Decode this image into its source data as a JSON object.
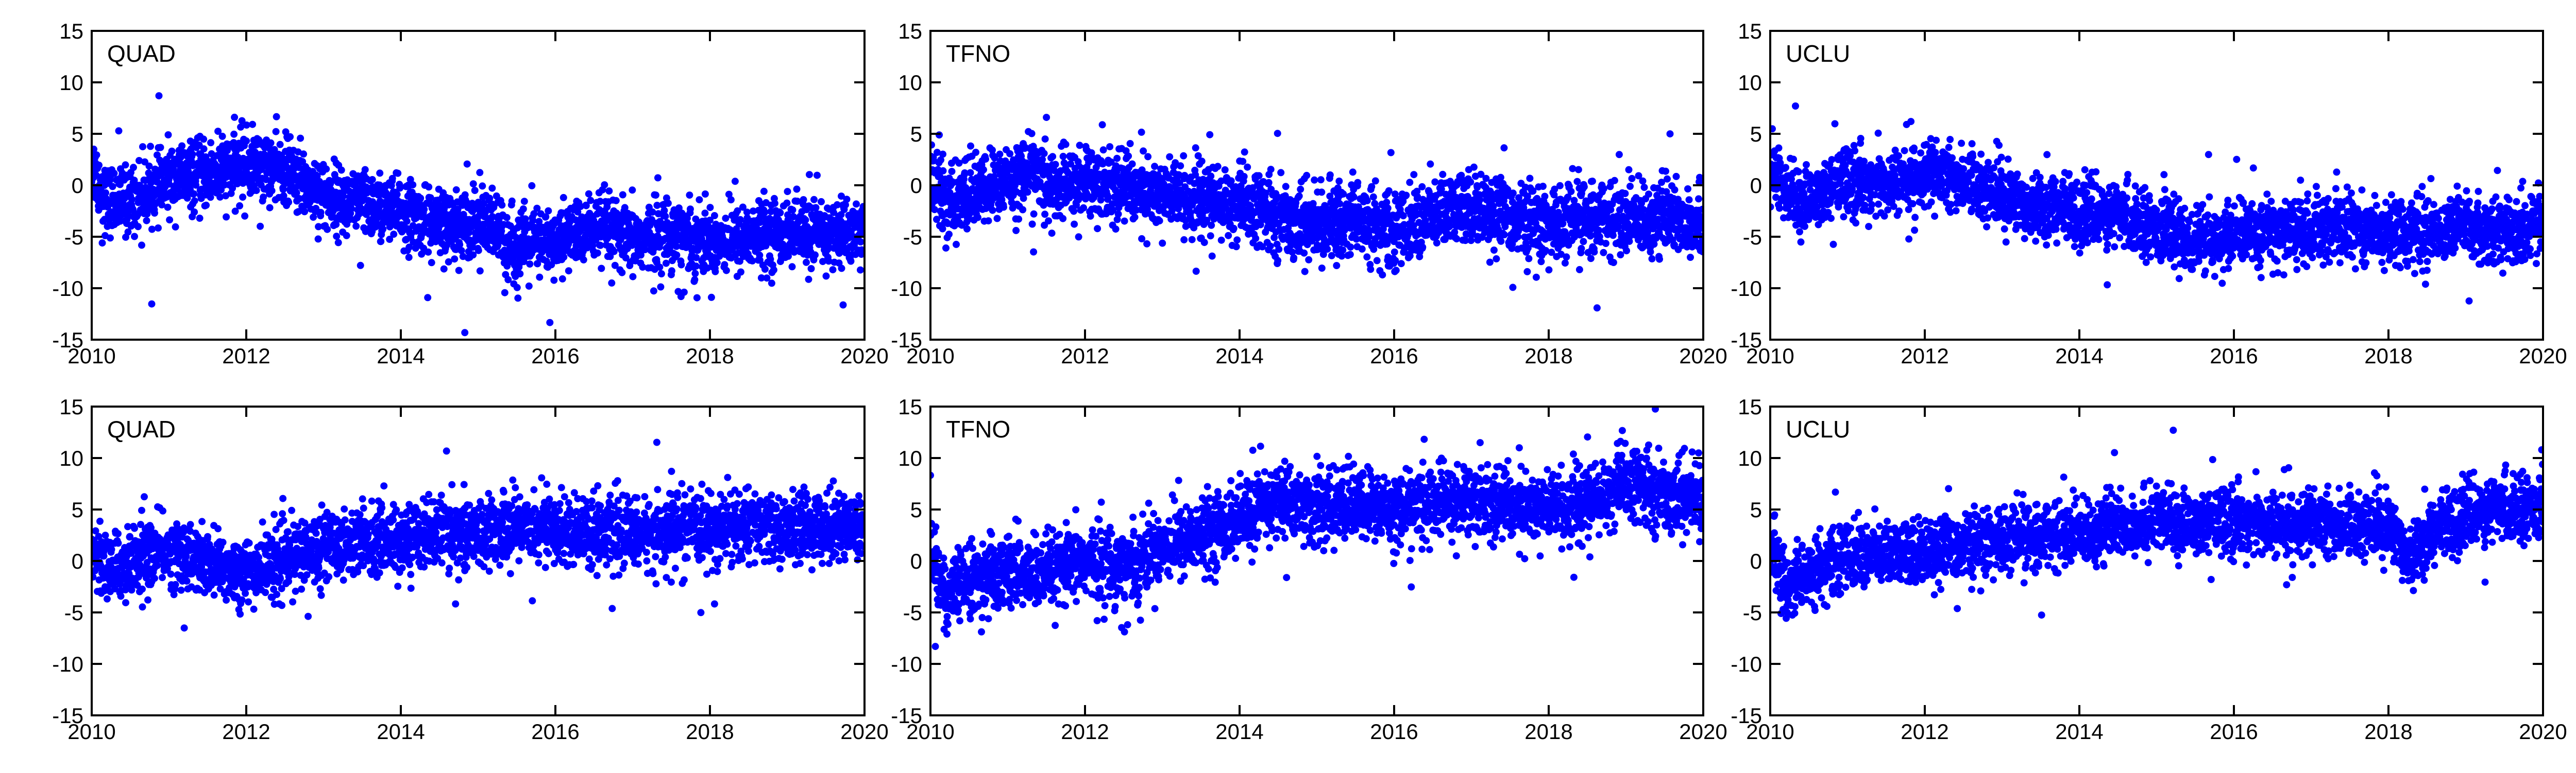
{
  "chart_data": {
    "type": "scatter",
    "marker_color": "#0000ff",
    "grid": false,
    "xlim": [
      2010,
      2020
    ],
    "ylim": [
      -15,
      15
    ],
    "xticks": [
      "2010",
      "2012",
      "2014",
      "2016",
      "2018",
      "2020"
    ],
    "yticks": [
      "15",
      "10",
      "5",
      "0",
      "-5",
      "-10",
      "-15"
    ],
    "panels": [
      {
        "title": "QUAD",
        "row": 0,
        "col": 0,
        "trend_points": [
          [
            2010.0,
            2.0
          ],
          [
            2010.2,
            -1.5
          ],
          [
            2010.5,
            -1.5
          ],
          [
            2011.0,
            0.5
          ],
          [
            2011.5,
            1.0
          ],
          [
            2012.0,
            2.0
          ],
          [
            2012.5,
            1.5
          ],
          [
            2013.0,
            -1.0
          ],
          [
            2013.5,
            -2.0
          ],
          [
            2014.0,
            -2.5
          ],
          [
            2014.5,
            -4.0
          ],
          [
            2015.0,
            -3.5
          ],
          [
            2015.5,
            -6.0
          ],
          [
            2016.0,
            -5.5
          ],
          [
            2016.5,
            -4.0
          ],
          [
            2017.0,
            -5.5
          ],
          [
            2017.5,
            -4.5
          ],
          [
            2018.0,
            -5.5
          ],
          [
            2018.5,
            -5.0
          ],
          [
            2019.0,
            -4.5
          ],
          [
            2019.5,
            -4.8
          ],
          [
            2020.0,
            -4.5
          ]
        ],
        "spread": 1.6
      },
      {
        "title": "TFNO",
        "row": 0,
        "col": 1,
        "trend_points": [
          [
            2010.0,
            2.0
          ],
          [
            2010.2,
            -2.0
          ],
          [
            2010.5,
            -1.0
          ],
          [
            2011.0,
            0.5
          ],
          [
            2011.3,
            1.5
          ],
          [
            2011.6,
            -0.5
          ],
          [
            2012.0,
            0.5
          ],
          [
            2012.5,
            0.0
          ],
          [
            2013.0,
            -1.0
          ],
          [
            2013.5,
            -1.5
          ],
          [
            2014.0,
            -2.0
          ],
          [
            2014.5,
            -3.0
          ],
          [
            2015.0,
            -4.0
          ],
          [
            2015.5,
            -3.0
          ],
          [
            2016.0,
            -4.5
          ],
          [
            2016.5,
            -3.0
          ],
          [
            2017.0,
            -2.0
          ],
          [
            2017.5,
            -3.0
          ],
          [
            2018.0,
            -4.0
          ],
          [
            2018.5,
            -3.0
          ],
          [
            2019.0,
            -3.5
          ],
          [
            2019.5,
            -3.0
          ],
          [
            2020.0,
            -3.5
          ]
        ],
        "spread": 1.7
      },
      {
        "title": "UCLU",
        "row": 0,
        "col": 2,
        "trend_points": [
          [
            2010.0,
            2.0
          ],
          [
            2010.2,
            -1.0
          ],
          [
            2010.5,
            -1.5
          ],
          [
            2011.0,
            0.5
          ],
          [
            2011.5,
            0.0
          ],
          [
            2012.0,
            1.0
          ],
          [
            2012.5,
            0.5
          ],
          [
            2013.0,
            -1.0
          ],
          [
            2013.5,
            -2.0
          ],
          [
            2014.0,
            -2.5
          ],
          [
            2014.5,
            -3.0
          ],
          [
            2015.0,
            -4.0
          ],
          [
            2015.5,
            -5.5
          ],
          [
            2016.0,
            -5.0
          ],
          [
            2016.5,
            -4.5
          ],
          [
            2017.0,
            -4.5
          ],
          [
            2017.5,
            -4.0
          ],
          [
            2018.0,
            -4.5
          ],
          [
            2018.5,
            -4.5
          ],
          [
            2019.0,
            -4.0
          ],
          [
            2019.5,
            -4.5
          ],
          [
            2020.0,
            -4.0
          ]
        ],
        "spread": 1.5
      },
      {
        "title": "QUAD",
        "row": 1,
        "col": 0,
        "trend_points": [
          [
            2010.0,
            1.5
          ],
          [
            2010.2,
            -1.0
          ],
          [
            2010.5,
            0.0
          ],
          [
            2011.0,
            1.0
          ],
          [
            2011.5,
            -0.5
          ],
          [
            2012.0,
            -1.0
          ],
          [
            2012.5,
            0.0
          ],
          [
            2013.0,
            1.5
          ],
          [
            2013.5,
            2.0
          ],
          [
            2014.0,
            2.0
          ],
          [
            2014.5,
            3.0
          ],
          [
            2015.0,
            2.5
          ],
          [
            2015.5,
            3.5
          ],
          [
            2016.0,
            3.0
          ],
          [
            2016.5,
            3.0
          ],
          [
            2017.0,
            2.5
          ],
          [
            2017.5,
            3.0
          ],
          [
            2018.0,
            3.0
          ],
          [
            2018.5,
            3.5
          ],
          [
            2019.0,
            3.0
          ],
          [
            2019.5,
            3.5
          ],
          [
            2020.0,
            3.5
          ]
        ],
        "spread": 1.6
      },
      {
        "title": "TFNO",
        "row": 1,
        "col": 1,
        "trend_points": [
          [
            2010.0,
            1.0
          ],
          [
            2010.2,
            -3.5
          ],
          [
            2010.5,
            -2.0
          ],
          [
            2011.0,
            -1.0
          ],
          [
            2011.5,
            -1.5
          ],
          [
            2012.0,
            0.0
          ],
          [
            2012.5,
            -0.5
          ],
          [
            2013.0,
            1.5
          ],
          [
            2013.5,
            2.5
          ],
          [
            2014.0,
            4.0
          ],
          [
            2014.5,
            6.0
          ],
          [
            2015.0,
            5.0
          ],
          [
            2015.5,
            5.5
          ],
          [
            2016.0,
            5.0
          ],
          [
            2016.5,
            5.5
          ],
          [
            2017.0,
            6.0
          ],
          [
            2017.5,
            5.5
          ],
          [
            2018.0,
            5.0
          ],
          [
            2018.5,
            5.5
          ],
          [
            2019.0,
            7.5
          ],
          [
            2019.5,
            6.5
          ],
          [
            2020.0,
            6.0
          ]
        ],
        "spread": 1.7
      },
      {
        "title": "UCLU",
        "row": 1,
        "col": 2,
        "trend_points": [
          [
            2010.0,
            1.5
          ],
          [
            2010.2,
            -2.5
          ],
          [
            2010.5,
            -1.0
          ],
          [
            2011.0,
            0.5
          ],
          [
            2011.5,
            0.5
          ],
          [
            2012.0,
            1.0
          ],
          [
            2012.5,
            1.5
          ],
          [
            2013.0,
            2.0
          ],
          [
            2013.5,
            2.5
          ],
          [
            2014.0,
            2.5
          ],
          [
            2014.5,
            3.5
          ],
          [
            2015.0,
            4.0
          ],
          [
            2015.5,
            3.5
          ],
          [
            2016.0,
            4.0
          ],
          [
            2016.5,
            3.5
          ],
          [
            2017.0,
            3.5
          ],
          [
            2017.5,
            3.5
          ],
          [
            2018.0,
            3.5
          ],
          [
            2018.3,
            0.5
          ],
          [
            2018.6,
            3.0
          ],
          [
            2019.0,
            4.5
          ],
          [
            2019.5,
            5.0
          ],
          [
            2020.0,
            5.5
          ]
        ],
        "spread": 1.5
      }
    ]
  }
}
